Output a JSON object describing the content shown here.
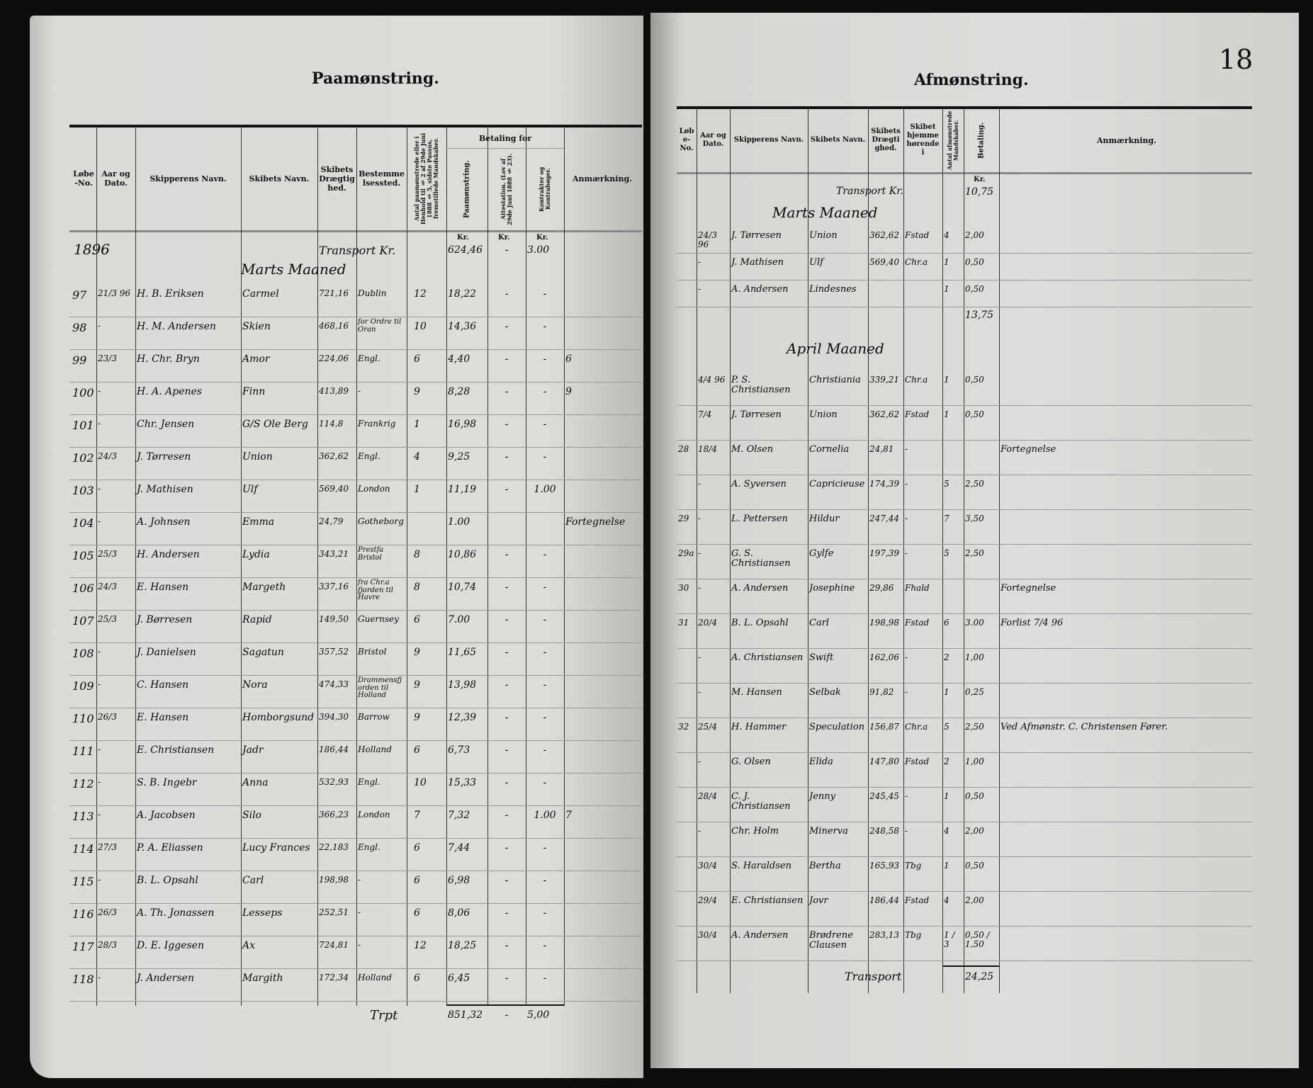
{
  "left_page": {
    "title": "Paamønstring.",
    "headers": {
      "lobe_no": "Løbe-No.",
      "date": "Aar og Dato.",
      "skipper": "Skipperens Navn.",
      "ship": "Skibets Navn.",
      "tonnage": "Skibets Drægtighed.",
      "destination": "Bestemmelsessted.",
      "crew": "Antal paamønstrede eller i Henhold til § 2 af 29de Juni 1888 § 5, sidste Passus, fremstillede Mandskaber.",
      "payment_group": "Betaling for",
      "pay_muster": "Paamønstring.",
      "pay_attest": "Attestation. (Lov af 29de Juni 1888 § 23).",
      "pay_contract": "Kontrakter og Kontrabøger.",
      "remarks": "Anmærkning.",
      "kr": "Kr."
    },
    "year": "1896",
    "transport": {
      "label": "Transport Kr.",
      "muster": "624,46",
      "attest": "-",
      "contract": "3.00"
    },
    "month": "Marts Maaned",
    "rows": [
      {
        "no": "97",
        "date": "21/3 96",
        "skipper": "H. B. Eriksen",
        "ship": "Carmel",
        "tonnage": "721,16",
        "dest": "Dublin",
        "crew": "12",
        "muster": "18,22",
        "attest": "-",
        "contract": "-",
        "remark": ""
      },
      {
        "no": "98",
        "date": "-",
        "skipper": "H. M. Andersen",
        "ship": "Skien",
        "tonnage": "468,16",
        "dest": "for Ordre til Oran",
        "crew": "10",
        "muster": "14,36",
        "attest": "-",
        "contract": "-",
        "remark": ""
      },
      {
        "no": "99",
        "date": "23/3",
        "skipper": "H. Chr. Bryn",
        "ship": "Amor",
        "tonnage": "224,06",
        "dest": "Engl.",
        "crew": "6",
        "muster": "4,40",
        "attest": "-",
        "contract": "-",
        "remark": "6"
      },
      {
        "no": "100",
        "date": "-",
        "skipper": "H. A. Apenes",
        "ship": "Finn",
        "tonnage": "413,89",
        "dest": "-",
        "crew": "9",
        "muster": "8,28",
        "attest": "-",
        "contract": "-",
        "remark": "9"
      },
      {
        "no": "101",
        "date": "-",
        "skipper": "Chr. Jensen",
        "ship": "G/S Ole Berg",
        "tonnage": "114,8",
        "dest": "Frankrig",
        "crew": "1",
        "muster": "16,98",
        "attest": "-",
        "contract": "-",
        "remark": ""
      },
      {
        "no": "102",
        "date": "24/3",
        "skipper": "J. Tørresen",
        "ship": "Union",
        "tonnage": "362,62",
        "dest": "Engl.",
        "crew": "4",
        "muster": "9,25",
        "attest": "-",
        "contract": "-",
        "remark": ""
      },
      {
        "no": "103",
        "date": "-",
        "skipper": "J. Mathisen",
        "ship": "Ulf",
        "tonnage": "569,40",
        "dest": "London",
        "crew": "1",
        "muster": "11,19",
        "attest": "-",
        "contract": "1.00",
        "remark": ""
      },
      {
        "no": "104",
        "date": "-",
        "skipper": "A. Johnsen",
        "ship": "Emma",
        "tonnage": "24,79",
        "dest": "Gotheborg",
        "crew": "",
        "muster": "1.00",
        "attest": "",
        "contract": "",
        "remark": "Fortegnelse"
      },
      {
        "no": "105",
        "date": "25/3",
        "skipper": "H. Andersen",
        "ship": "Lydia",
        "tonnage": "343,21",
        "dest": "Prestfa Bristol",
        "crew": "8",
        "muster": "10,86",
        "attest": "-",
        "contract": "-",
        "remark": ""
      },
      {
        "no": "106",
        "date": "24/3",
        "skipper": "E. Hansen",
        "ship": "Margeth",
        "tonnage": "337,16",
        "dest": "fra Chr.a fjorden til Havre",
        "crew": "8",
        "muster": "10,74",
        "attest": "-",
        "contract": "-",
        "remark": ""
      },
      {
        "no": "107",
        "date": "25/3",
        "skipper": "J. Børresen",
        "ship": "Rapid",
        "tonnage": "149,50",
        "dest": "Guernsey",
        "crew": "6",
        "muster": "7.00",
        "attest": "-",
        "contract": "-",
        "remark": ""
      },
      {
        "no": "108",
        "date": "-",
        "skipper": "J. Danielsen",
        "ship": "Sagatun",
        "tonnage": "357,52",
        "dest": "Bristol",
        "crew": "9",
        "muster": "11,65",
        "attest": "-",
        "contract": "-",
        "remark": ""
      },
      {
        "no": "109",
        "date": "-",
        "skipper": "C. Hansen",
        "ship": "Nora",
        "tonnage": "474,33",
        "dest": "Drammensfjorden til Holland",
        "crew": "9",
        "muster": "13,98",
        "attest": "-",
        "contract": "-",
        "remark": ""
      },
      {
        "no": "110",
        "date": "26/3",
        "skipper": "E. Hansen",
        "ship": "Homborgsund",
        "tonnage": "394,30",
        "dest": "Barrow",
        "crew": "9",
        "muster": "12,39",
        "attest": "-",
        "contract": "-",
        "remark": ""
      },
      {
        "no": "111",
        "date": "-",
        "skipper": "E. Christiansen",
        "ship": "Jadr",
        "tonnage": "186,44",
        "dest": "Holland",
        "crew": "6",
        "muster": "6,73",
        "attest": "-",
        "contract": "-",
        "remark": ""
      },
      {
        "no": "112",
        "date": "-",
        "skipper": "S. B. Ingebr",
        "ship": "Anna",
        "tonnage": "532,93",
        "dest": "Engl.",
        "crew": "10",
        "muster": "15,33",
        "attest": "-",
        "contract": "-",
        "remark": ""
      },
      {
        "no": "113",
        "date": "-",
        "skipper": "A. Jacobsen",
        "ship": "Silo",
        "tonnage": "366,23",
        "dest": "London",
        "crew": "7",
        "muster": "7,32",
        "attest": "-",
        "contract": "1.00",
        "remark": "7"
      },
      {
        "no": "114",
        "date": "27/3",
        "skipper": "P. A. Eliassen",
        "ship": "Lucy Frances",
        "tonnage": "22,183",
        "dest": "Engl.",
        "crew": "6",
        "muster": "7,44",
        "attest": "-",
        "contract": "-",
        "remark": ""
      },
      {
        "no": "115",
        "date": "-",
        "skipper": "B. L. Opsahl",
        "ship": "Carl",
        "tonnage": "198,98",
        "dest": "-",
        "crew": "6",
        "muster": "6,98",
        "attest": "-",
        "contract": "-",
        "remark": ""
      },
      {
        "no": "116",
        "date": "26/3",
        "skipper": "A. Th. Jonassen",
        "ship": "Lesseps",
        "tonnage": "252,51",
        "dest": "-",
        "crew": "6",
        "muster": "8,06",
        "attest": "-",
        "contract": "-",
        "remark": ""
      },
      {
        "no": "117",
        "date": "28/3",
        "skipper": "D. E. Iggesen",
        "ship": "Ax",
        "tonnage": "724,81",
        "dest": "-",
        "crew": "12",
        "muster": "18,25",
        "attest": "-",
        "contract": "-",
        "remark": ""
      },
      {
        "no": "118",
        "date": "-",
        "skipper": "J. Andersen",
        "ship": "Margith",
        "tonnage": "172,34",
        "dest": "Holland",
        "crew": "6",
        "muster": "6,45",
        "attest": "-",
        "contract": "-",
        "remark": ""
      }
    ],
    "total": {
      "label": "Trpt",
      "muster": "851,32",
      "attest": "-",
      "contract": "5,00"
    }
  },
  "right_page": {
    "page_number": "18",
    "title": "Afmønstring.",
    "headers": {
      "lobe_no": "Løbe-No.",
      "date": "Aar og Dato.",
      "skipper": "Skipperens Navn.",
      "ship": "Skibets Navn.",
      "tonnage": "Skibets Drægtighed.",
      "home": "Skibet hjemmehørende i",
      "crew": "Antal afmønstrede Mandskaber.",
      "payment": "Betaling.",
      "remarks": "Anmærkning.",
      "kr": "Kr."
    },
    "transport": {
      "label": "Transport Kr.",
      "amount": "10,75"
    },
    "month_march": "Marts Maaned",
    "march_rows": [
      {
        "no": "",
        "date": "24/3 96",
        "skipper": "J. Tørresen",
        "ship": "Union",
        "tonnage": "362,62",
        "home": "Fstad",
        "crew": "4",
        "pay": "2,00",
        "remark": ""
      },
      {
        "no": "",
        "date": "-",
        "skipper": "J. Mathisen",
        "ship": "Ulf",
        "tonnage": "569,40",
        "home": "Chr.a",
        "crew": "1",
        "pay": "0,50",
        "remark": ""
      },
      {
        "no": "",
        "date": "-",
        "skipper": "A. Andersen",
        "ship": "Lindesnes",
        "tonnage": "",
        "home": "",
        "crew": "1",
        "pay": "0,50",
        "remark": ""
      }
    ],
    "march_total": "13,75",
    "month_april": "April Maaned",
    "april_rows": [
      {
        "no": "",
        "date": "4/4 96",
        "skipper": "P. S. Christiansen",
        "ship": "Christiania",
        "tonnage": "339,21",
        "home": "Chr.a",
        "crew": "1",
        "pay": "0,50",
        "remark": ""
      },
      {
        "no": "",
        "date": "7/4",
        "skipper": "J. Tørresen",
        "ship": "Union",
        "tonnage": "362,62",
        "home": "Fstad",
        "crew": "1",
        "pay": "0,50",
        "remark": ""
      },
      {
        "no": "28",
        "date": "18/4",
        "skipper": "M. Olsen",
        "ship": "Cornelia",
        "tonnage": "24,81",
        "home": "-",
        "crew": "",
        "pay": "",
        "remark": "Fortegnelse"
      },
      {
        "no": "",
        "date": "-",
        "skipper": "A. Syversen",
        "ship": "Capricieuse",
        "tonnage": "174,39",
        "home": "-",
        "crew": "5",
        "pay": "2,50",
        "remark": ""
      },
      {
        "no": "29",
        "date": "-",
        "skipper": "L. Pettersen",
        "ship": "Hildur",
        "tonnage": "247,44",
        "home": "-",
        "crew": "7",
        "pay": "3,50",
        "remark": ""
      },
      {
        "no": "29a",
        "date": "-",
        "skipper": "G. S. Christiansen",
        "ship": "Gylfe",
        "tonnage": "197,39",
        "home": "-",
        "crew": "5",
        "pay": "2,50",
        "remark": ""
      },
      {
        "no": "30",
        "date": "-",
        "skipper": "A. Andersen",
        "ship": "Josephine",
        "tonnage": "29,86",
        "home": "Fhald",
        "crew": "",
        "pay": "",
        "remark": "Fortegnelse"
      },
      {
        "no": "31",
        "date": "20/4",
        "skipper": "B. L. Opsahl",
        "ship": "Carl",
        "tonnage": "198,98",
        "home": "Fstad",
        "crew": "6",
        "pay": "3.00",
        "remark": "Forlist 7/4 96"
      },
      {
        "no": "",
        "date": "-",
        "skipper": "A. Christiansen",
        "ship": "Swift",
        "tonnage": "162,06",
        "home": "-",
        "crew": "2",
        "pay": "1,00",
        "remark": ""
      },
      {
        "no": "",
        "date": "-",
        "skipper": "M. Hansen",
        "ship": "Selbak",
        "tonnage": "91,82",
        "home": "-",
        "crew": "1",
        "pay": "0,25",
        "remark": ""
      },
      {
        "no": "32",
        "date": "25/4",
        "skipper": "H. Hammer",
        "ship": "Speculation",
        "tonnage": "156,87",
        "home": "Chr.a",
        "crew": "5",
        "pay": "2,50",
        "remark": "Ved Afmønstr. C. Christensen Fører."
      },
      {
        "no": "",
        "date": "-",
        "skipper": "G. Olsen",
        "ship": "Elida",
        "tonnage": "147,80",
        "home": "Fstad",
        "crew": "2",
        "pay": "1,00",
        "remark": ""
      },
      {
        "no": "",
        "date": "28/4",
        "skipper": "C. J. Christiansen",
        "ship": "Jenny",
        "tonnage": "245,45",
        "home": "-",
        "crew": "1",
        "pay": "0,50",
        "remark": ""
      },
      {
        "no": "",
        "date": "-",
        "skipper": "Chr. Holm",
        "ship": "Minerva",
        "tonnage": "248,58",
        "home": "-",
        "crew": "4",
        "pay": "2,00",
        "remark": ""
      },
      {
        "no": "",
        "date": "30/4",
        "skipper": "S. Haraldsen",
        "ship": "Bertha",
        "tonnage": "165,93",
        "home": "Tbg",
        "crew": "1",
        "pay": "0,50",
        "remark": ""
      },
      {
        "no": "",
        "date": "29/4",
        "skipper": "E. Christiansen",
        "ship": "Jovr",
        "tonnage": "186,44",
        "home": "Fstad",
        "crew": "4",
        "pay": "2,00",
        "remark": ""
      },
      {
        "no": "",
        "date": "30/4",
        "skipper": "A. Andersen",
        "ship": "Brødrene Clausen",
        "tonnage": "283,13",
        "home": "Tbg",
        "crew": "1 / 3",
        "pay": "0,50 / 1,50",
        "remark": ""
      }
    ],
    "total": {
      "label": "Transport",
      "amount": "24,25"
    }
  }
}
